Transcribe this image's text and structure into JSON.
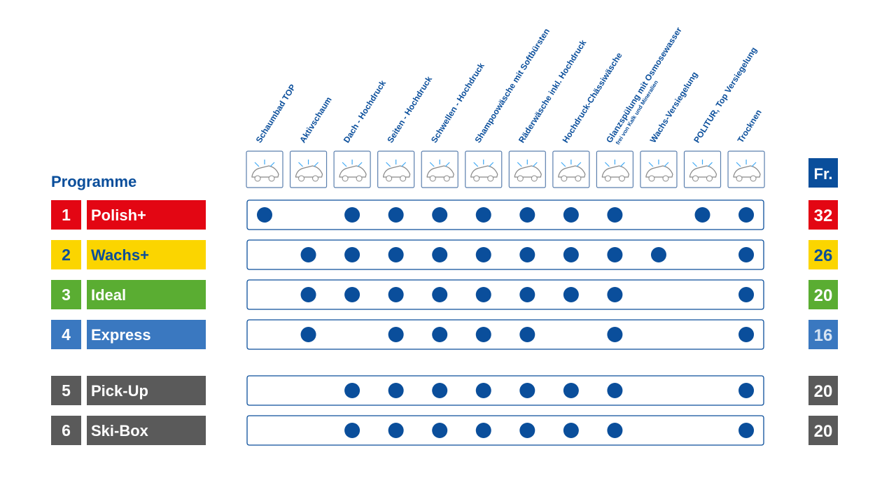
{
  "heading": "Programme",
  "currency": "Fr.",
  "steps": [
    {
      "label": "Schaumbad TOP"
    },
    {
      "label": "Aktivschaum"
    },
    {
      "label": "Dach - Hochdruck"
    },
    {
      "label": "Seiten - Hochdruck"
    },
    {
      "label": "Schwellen - Hochdruck"
    },
    {
      "label": "Shampoowäsche mit Softbürsten"
    },
    {
      "label": "Räderwäsche inkl. Hochdruck"
    },
    {
      "label": "Hochdruck-Chässiwäsche"
    },
    {
      "label": "Glanzspülung mit Osmosewasser",
      "note": "frei von Kalk und Mineralien"
    },
    {
      "label": "Wachs-Versiegelung"
    },
    {
      "label": "POLITUR, Top Versiegelung"
    },
    {
      "label": "Trocknen"
    }
  ],
  "programs": [
    {
      "number": "1",
      "name": "Polish+",
      "price": "32",
      "color": "#e30613",
      "text_color": "#ffffff",
      "price_text_color": "#ffffff",
      "included": [
        true,
        false,
        true,
        true,
        true,
        true,
        true,
        true,
        true,
        false,
        true,
        true
      ]
    },
    {
      "number": "2",
      "name": "Wachs+",
      "price": "26",
      "color": "#fbd500",
      "text_color": "#0a4e9b",
      "price_text_color": "#0a4e9b",
      "included": [
        false,
        true,
        true,
        true,
        true,
        true,
        true,
        true,
        true,
        true,
        false,
        true
      ]
    },
    {
      "number": "3",
      "name": "Ideal",
      "price": "20",
      "color": "#5aad32",
      "text_color": "#ffffff",
      "price_text_color": "#ffffff",
      "included": [
        false,
        true,
        true,
        true,
        true,
        true,
        true,
        true,
        true,
        false,
        false,
        true
      ]
    },
    {
      "number": "4",
      "name": "Express",
      "price": "16",
      "color": "#3a78c0",
      "text_color": "#ffffff",
      "price_text_color": "#d7e4f3",
      "included": [
        false,
        true,
        false,
        true,
        true,
        true,
        true,
        false,
        true,
        false,
        false,
        true
      ]
    },
    {
      "number": "5",
      "name": "Pick-Up",
      "price": "20",
      "color": "#5a5a5a",
      "text_color": "#ffffff",
      "price_text_color": "#ffffff",
      "included": [
        false,
        false,
        true,
        true,
        true,
        true,
        true,
        true,
        true,
        false,
        false,
        true
      ]
    },
    {
      "number": "6",
      "name": "Ski-Box",
      "price": "20",
      "color": "#5a5a5a",
      "text_color": "#ffffff",
      "price_text_color": "#ffffff",
      "included": [
        false,
        false,
        true,
        true,
        true,
        true,
        true,
        true,
        true,
        false,
        false,
        true
      ]
    }
  ]
}
